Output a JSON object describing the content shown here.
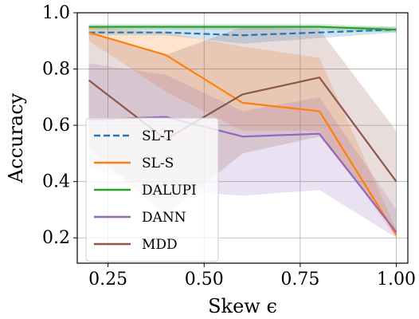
{
  "chart_data": {
    "type": "line",
    "title": "",
    "xlabel": "Skew ϵ",
    "ylabel": "Accuracy",
    "xlim": [
      0.17,
      1.03
    ],
    "ylim": [
      0.11,
      1.0
    ],
    "xticks": [
      0.25,
      0.5,
      0.75,
      1.0
    ],
    "xtick_labels": [
      "0.25",
      "0.50",
      "0.75",
      "1.00"
    ],
    "yticks": [
      0.2,
      0.4,
      0.6,
      0.8,
      1.0
    ],
    "ytick_labels": [
      "0.2",
      "0.4",
      "0.6",
      "0.8",
      "1.0"
    ],
    "grid": true,
    "legend_position": "lower-left",
    "x": [
      0.2,
      0.4,
      0.6,
      0.8,
      1.0
    ],
    "series": [
      {
        "name": "SL-T",
        "color": "#1f77b4",
        "dash": "dashed",
        "values": [
          0.93,
          0.93,
          0.92,
          0.93,
          0.94
        ],
        "band_lower": [
          0.92,
          0.92,
          0.89,
          0.91,
          0.93
        ],
        "band_upper": [
          0.95,
          0.95,
          0.95,
          0.95,
          0.95
        ]
      },
      {
        "name": "SL-S",
        "color": "#ff7f0e",
        "dash": "solid",
        "values": [
          0.93,
          0.85,
          0.68,
          0.65,
          0.21
        ],
        "band_lower": [
          0.9,
          0.72,
          0.58,
          0.58,
          0.2
        ],
        "band_upper": [
          0.95,
          0.93,
          0.88,
          0.84,
          0.23
        ]
      },
      {
        "name": "DALUPI",
        "color": "#2ca02c",
        "dash": "solid",
        "values": [
          0.95,
          0.95,
          0.95,
          0.95,
          0.94
        ],
        "band_lower": [
          0.94,
          0.94,
          0.94,
          0.94,
          0.93
        ],
        "band_upper": [
          0.96,
          0.96,
          0.96,
          0.96,
          0.95
        ]
      },
      {
        "name": "DANN",
        "color": "#9467bd",
        "dash": "solid",
        "values": [
          0.62,
          0.63,
          0.56,
          0.57,
          0.22
        ],
        "band_lower": [
          0.45,
          0.37,
          0.35,
          0.37,
          0.2
        ],
        "band_upper": [
          0.82,
          0.78,
          0.65,
          0.7,
          0.3
        ]
      },
      {
        "name": "MDD",
        "color": "#8c564b",
        "dash": "solid",
        "values": [
          0.76,
          0.55,
          0.71,
          0.77,
          0.4
        ],
        "band_lower": [
          0.52,
          0.28,
          0.5,
          0.56,
          0.22
        ],
        "band_upper": [
          0.93,
          0.85,
          0.95,
          0.94,
          0.58
        ]
      }
    ]
  }
}
